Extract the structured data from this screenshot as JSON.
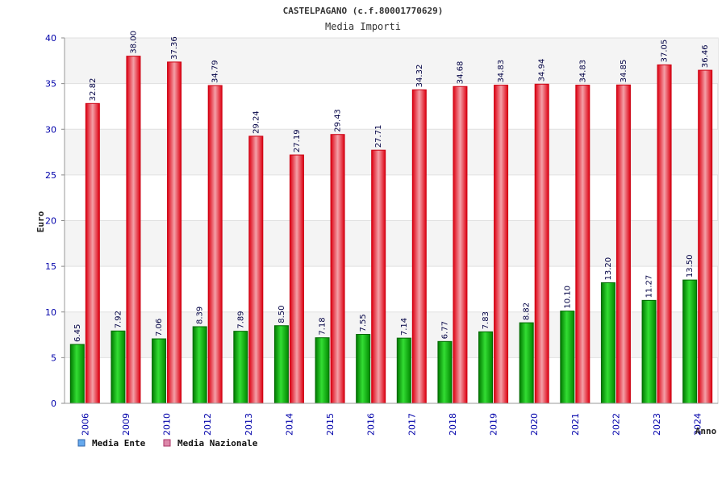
{
  "chart_data": {
    "type": "bar",
    "title": "CASTELPAGANO (c.f.80001770629)",
    "subtitle": "Media Importi",
    "xlabel": "Anno",
    "ylabel": "Euro",
    "ylim": [
      0,
      40
    ],
    "yticks": [
      "0",
      "5",
      "10",
      "15",
      "20",
      "25",
      "30",
      "35",
      "40"
    ],
    "grid": true,
    "legend_position": "bottom-left",
    "categories": [
      "2006",
      "2009",
      "2010",
      "2012",
      "2013",
      "2014",
      "2015",
      "2016",
      "2017",
      "2018",
      "2019",
      "2020",
      "2021",
      "2022",
      "2023",
      "2024"
    ],
    "series": [
      {
        "name": "Media Ente",
        "color": "#00aa00",
        "legend_color": "#66aaee",
        "values": [
          6.45,
          7.92,
          7.06,
          8.39,
          7.89,
          8.5,
          7.18,
          7.55,
          7.14,
          6.77,
          7.83,
          8.82,
          10.1,
          13.2,
          11.27,
          13.5
        ],
        "labels": [
          "6.45",
          "7.92",
          "7.06",
          "8.39",
          "7.89",
          "8.50",
          "7.18",
          "7.55",
          "7.14",
          "6.77",
          "7.83",
          "8.82",
          "10.10",
          "13.20",
          "11.27",
          "13.50"
        ]
      },
      {
        "name": "Media Nazionale",
        "color": "#ee1122",
        "legend_color": "#dd88aa",
        "values": [
          32.82,
          38.0,
          37.36,
          34.79,
          29.24,
          27.19,
          29.43,
          27.71,
          34.32,
          34.68,
          34.83,
          34.94,
          34.83,
          34.85,
          37.05,
          36.46
        ],
        "labels": [
          "32.82",
          "38.00",
          "37.36",
          "34.79",
          "29.24",
          "27.19",
          "29.43",
          "27.71",
          "34.32",
          "34.68",
          "34.83",
          "34.94",
          "34.83",
          "34.85",
          "37.05",
          "36.46"
        ]
      }
    ]
  }
}
